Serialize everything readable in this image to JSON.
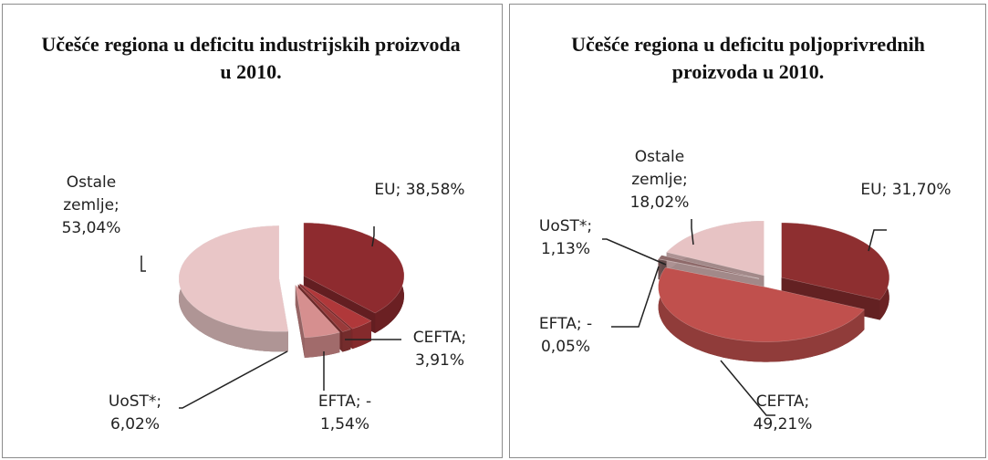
{
  "chart_data": [
    {
      "type": "pie",
      "title": "Učešće regiona u deficitu industrijskih  proizvoda u 2010.",
      "categories": [
        "EU",
        "CEFTA",
        "EFTA",
        "UoST*",
        "Ostale zemlje"
      ],
      "values": [
        38.58,
        3.91,
        -1.54,
        6.02,
        53.04
      ],
      "value_labels": [
        "EU; 38,58%",
        "CEFTA; 3,91%",
        "EFTA; - 1,54%",
        "UoST*; 6,02%",
        "Ostale zemlje; 53,04%"
      ],
      "colors": [
        "#8e2b2f",
        "#b0383a",
        "#9a3a3a",
        "#d68f8f",
        "#e9c6c7"
      ]
    },
    {
      "type": "pie",
      "title": "Učešće regiona u deficitu poljoprivrednih proizvoda u 2010.",
      "categories": [
        "EU",
        "CEFTA",
        "EFTA",
        "UoST*",
        "Ostale zemlje"
      ],
      "values": [
        31.7,
        49.21,
        -0.05,
        1.13,
        18.02
      ],
      "value_labels": [
        "EU; 31,70%",
        "CEFTA; 49,21%",
        "EFTA; - 0,05%",
        "UoST*; 1,13%",
        "Ostale zemlje; 18,02%"
      ],
      "colors": [
        "#8e2f30",
        "#c0504d",
        "#7a2526",
        "#8e6a6a",
        "#e7c3c4"
      ]
    }
  ]
}
